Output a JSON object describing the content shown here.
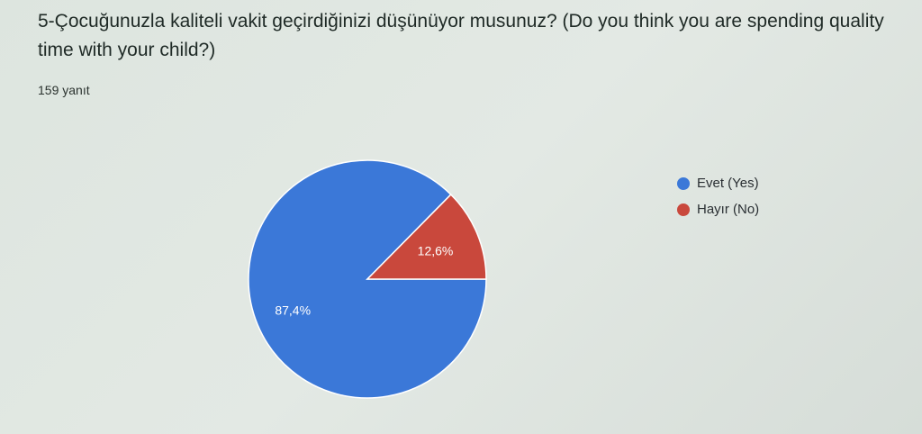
{
  "chart_data": {
    "type": "pie",
    "title": "5-Çocuğunuzla kaliteli vakit geçirdiğinizi düşünüyor musunuz? (Do you think you are spending quality time with your child?)",
    "subtitle": "159 yanıt",
    "categories": [
      "Evet (Yes)",
      "Hayır (No)"
    ],
    "values": [
      87.4,
      12.6
    ],
    "labels": [
      "87,4%",
      "12,6%"
    ],
    "colors": [
      "#3b78d8",
      "#c9483c"
    ],
    "legend": "right"
  }
}
